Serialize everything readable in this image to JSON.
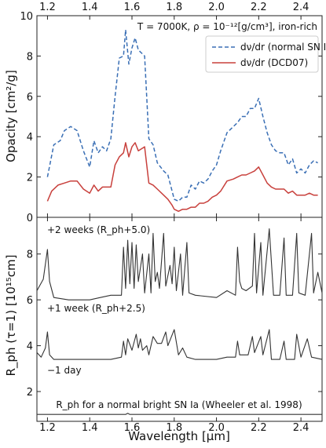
{
  "chart_data": [
    {
      "type": "line",
      "panel": "top",
      "ylabel": "Opacity [cm²/g]",
      "annotation": "T = 7000K, ρ = 10⁻¹²[g/cm³], iron-rich",
      "xlim": [
        1.15,
        2.5
      ],
      "ylim": [
        0,
        10
      ],
      "x_ticks": [
        "1.2",
        "1.4",
        "1.6",
        "1.8",
        "2.0",
        "2.2",
        "2.4"
      ],
      "y_ticks": [
        "0",
        "2",
        "4",
        "6",
        "8",
        "10"
      ],
      "legend_position": "top-right",
      "series": [
        {
          "name": "dν/dr (normal SN Ia)",
          "color": "#3a6fb5",
          "dash": "dashed",
          "points": [
            [
              1.2,
              2.0
            ],
            [
              1.23,
              3.6
            ],
            [
              1.26,
              3.8
            ],
            [
              1.28,
              4.3
            ],
            [
              1.31,
              4.5
            ],
            [
              1.34,
              4.3
            ],
            [
              1.37,
              3.3
            ],
            [
              1.4,
              2.5
            ],
            [
              1.42,
              3.8
            ],
            [
              1.44,
              3.2
            ],
            [
              1.46,
              3.5
            ],
            [
              1.48,
              3.3
            ],
            [
              1.5,
              3.9
            ],
            [
              1.52,
              6.0
            ],
            [
              1.54,
              7.9
            ],
            [
              1.56,
              8.0
            ],
            [
              1.57,
              9.3
            ],
            [
              1.585,
              7.6
            ],
            [
              1.6,
              8.4
            ],
            [
              1.615,
              8.9
            ],
            [
              1.63,
              8.3
            ],
            [
              1.66,
              8.0
            ],
            [
              1.68,
              3.9
            ],
            [
              1.7,
              3.6
            ],
            [
              1.72,
              2.7
            ],
            [
              1.75,
              2.3
            ],
            [
              1.77,
              2.1
            ],
            [
              1.79,
              1.3
            ],
            [
              1.8,
              0.9
            ],
            [
              1.82,
              0.8
            ],
            [
              1.84,
              1.0
            ],
            [
              1.86,
              1.0
            ],
            [
              1.88,
              1.6
            ],
            [
              1.9,
              1.4
            ],
            [
              1.92,
              1.8
            ],
            [
              1.94,
              1.7
            ],
            [
              1.96,
              1.9
            ],
            [
              1.98,
              2.3
            ],
            [
              2.0,
              2.6
            ],
            [
              2.02,
              3.3
            ],
            [
              2.05,
              4.2
            ],
            [
              2.08,
              4.5
            ],
            [
              2.1,
              4.7
            ],
            [
              2.12,
              5.0
            ],
            [
              2.14,
              5.0
            ],
            [
              2.16,
              5.4
            ],
            [
              2.18,
              5.4
            ],
            [
              2.2,
              5.9
            ],
            [
              2.22,
              5.0
            ],
            [
              2.24,
              4.2
            ],
            [
              2.26,
              3.6
            ],
            [
              2.28,
              3.3
            ],
            [
              2.3,
              3.2
            ],
            [
              2.32,
              3.2
            ],
            [
              2.34,
              2.6
            ],
            [
              2.36,
              2.9
            ],
            [
              2.38,
              2.2
            ],
            [
              2.4,
              2.4
            ],
            [
              2.42,
              2.2
            ],
            [
              2.44,
              2.6
            ],
            [
              2.46,
              2.8
            ],
            [
              2.48,
              2.7
            ]
          ]
        },
        {
          "name": "dν/dr (DCD07)",
          "color": "#c8403c",
          "dash": "solid",
          "points": [
            [
              1.2,
              0.8
            ],
            [
              1.22,
              1.3
            ],
            [
              1.25,
              1.6
            ],
            [
              1.28,
              1.7
            ],
            [
              1.31,
              1.8
            ],
            [
              1.34,
              1.8
            ],
            [
              1.37,
              1.4
            ],
            [
              1.4,
              1.2
            ],
            [
              1.42,
              1.6
            ],
            [
              1.44,
              1.3
            ],
            [
              1.46,
              1.5
            ],
            [
              1.48,
              1.5
            ],
            [
              1.5,
              1.5
            ],
            [
              1.52,
              2.6
            ],
            [
              1.54,
              3.0
            ],
            [
              1.56,
              3.2
            ],
            [
              1.57,
              3.7
            ],
            [
              1.585,
              3.0
            ],
            [
              1.6,
              3.5
            ],
            [
              1.615,
              3.7
            ],
            [
              1.63,
              3.3
            ],
            [
              1.66,
              3.5
            ],
            [
              1.68,
              1.7
            ],
            [
              1.7,
              1.6
            ],
            [
              1.72,
              1.4
            ],
            [
              1.75,
              1.1
            ],
            [
              1.77,
              0.9
            ],
            [
              1.79,
              0.6
            ],
            [
              1.8,
              0.4
            ],
            [
              1.82,
              0.3
            ],
            [
              1.84,
              0.4
            ],
            [
              1.86,
              0.4
            ],
            [
              1.88,
              0.5
            ],
            [
              1.9,
              0.5
            ],
            [
              1.92,
              0.7
            ],
            [
              1.94,
              0.7
            ],
            [
              1.96,
              0.8
            ],
            [
              1.98,
              1.0
            ],
            [
              2.0,
              1.1
            ],
            [
              2.02,
              1.3
            ],
            [
              2.05,
              1.8
            ],
            [
              2.08,
              1.9
            ],
            [
              2.1,
              2.0
            ],
            [
              2.12,
              2.1
            ],
            [
              2.14,
              2.1
            ],
            [
              2.16,
              2.2
            ],
            [
              2.18,
              2.3
            ],
            [
              2.2,
              2.5
            ],
            [
              2.22,
              2.1
            ],
            [
              2.24,
              1.7
            ],
            [
              2.26,
              1.5
            ],
            [
              2.28,
              1.4
            ],
            [
              2.3,
              1.4
            ],
            [
              2.32,
              1.4
            ],
            [
              2.34,
              1.2
            ],
            [
              2.36,
              1.3
            ],
            [
              2.38,
              1.1
            ],
            [
              2.4,
              1.1
            ],
            [
              2.42,
              1.1
            ],
            [
              2.44,
              1.2
            ],
            [
              2.46,
              1.1
            ],
            [
              2.48,
              1.1
            ]
          ]
        }
      ]
    },
    {
      "type": "line",
      "panel": "bottom",
      "ylabel": "R_ph (τ=1) [10¹⁵cm]",
      "xlabel": "Wavelength [μm]",
      "xlim": [
        1.15,
        2.5
      ],
      "ylim": [
        0.7,
        9.6
      ],
      "x_ticks": [
        "1.2",
        "1.4",
        "1.6",
        "1.8",
        "2.0",
        "2.2",
        "2.4"
      ],
      "y_ticks": [
        "2",
        "4",
        "6",
        "8"
      ],
      "annotations": [
        "+2 weeks (R_ph+5.0)",
        "+1 week (R_ph+2.5)",
        "−1 day",
        "R_ph for a normal bright SN Ia (Wheeler et al. 1998)"
      ],
      "series": [
        {
          "name": "+2 weeks",
          "color": "#333333",
          "points": [
            [
              1.15,
              6.4
            ],
            [
              1.18,
              6.9
            ],
            [
              1.2,
              8.2
            ],
            [
              1.21,
              6.8
            ],
            [
              1.23,
              6.1
            ],
            [
              1.3,
              6.0
            ],
            [
              1.4,
              6.0
            ],
            [
              1.45,
              6.1
            ],
            [
              1.5,
              6.2
            ],
            [
              1.55,
              6.2
            ],
            [
              1.56,
              8.3
            ],
            [
              1.57,
              6.5
            ],
            [
              1.58,
              8.6
            ],
            [
              1.59,
              6.7
            ],
            [
              1.6,
              8.5
            ],
            [
              1.61,
              6.5
            ],
            [
              1.62,
              8.4
            ],
            [
              1.63,
              6.8
            ],
            [
              1.65,
              8.0
            ],
            [
              1.66,
              6.3
            ],
            [
              1.68,
              8.0
            ],
            [
              1.69,
              6.3
            ],
            [
              1.7,
              8.9
            ],
            [
              1.71,
              6.8
            ],
            [
              1.72,
              7.2
            ],
            [
              1.73,
              6.5
            ],
            [
              1.75,
              8.9
            ],
            [
              1.76,
              6.6
            ],
            [
              1.78,
              7.5
            ],
            [
              1.79,
              6.7
            ],
            [
              1.8,
              8.3
            ],
            [
              1.81,
              6.4
            ],
            [
              1.83,
              8.0
            ],
            [
              1.84,
              6.2
            ],
            [
              1.86,
              8.5
            ],
            [
              1.87,
              6.3
            ],
            [
              1.9,
              6.2
            ],
            [
              2.0,
              6.1
            ],
            [
              2.05,
              6.4
            ],
            [
              2.09,
              6.2
            ],
            [
              2.1,
              8.3
            ],
            [
              2.11,
              6.8
            ],
            [
              2.12,
              6.5
            ],
            [
              2.14,
              6.4
            ],
            [
              2.17,
              6.6
            ],
            [
              2.18,
              8.9
            ],
            [
              2.19,
              6.3
            ],
            [
              2.21,
              8.5
            ],
            [
              2.22,
              6.2
            ],
            [
              2.25,
              9.1
            ],
            [
              2.27,
              6.2
            ],
            [
              2.3,
              6.2
            ],
            [
              2.32,
              8.7
            ],
            [
              2.33,
              6.2
            ],
            [
              2.36,
              6.2
            ],
            [
              2.38,
              8.9
            ],
            [
              2.39,
              6.3
            ],
            [
              2.42,
              6.2
            ],
            [
              2.45,
              8.9
            ],
            [
              2.46,
              6.3
            ],
            [
              2.48,
              7.2
            ],
            [
              2.5,
              6.3
            ]
          ]
        },
        {
          "name": "+1 week",
          "color": "#333333",
          "points": [
            [
              1.15,
              3.7
            ],
            [
              1.17,
              3.5
            ],
            [
              1.19,
              3.9
            ],
            [
              1.2,
              4.6
            ],
            [
              1.21,
              3.6
            ],
            [
              1.23,
              3.4
            ],
            [
              1.3,
              3.4
            ],
            [
              1.4,
              3.4
            ],
            [
              1.5,
              3.4
            ],
            [
              1.55,
              3.5
            ],
            [
              1.56,
              4.2
            ],
            [
              1.57,
              3.6
            ],
            [
              1.58,
              4.3
            ],
            [
              1.6,
              3.8
            ],
            [
              1.62,
              4.5
            ],
            [
              1.63,
              3.9
            ],
            [
              1.64,
              4.3
            ],
            [
              1.65,
              3.8
            ],
            [
              1.67,
              4.0
            ],
            [
              1.68,
              3.6
            ],
            [
              1.7,
              4.4
            ],
            [
              1.72,
              4.1
            ],
            [
              1.74,
              4.1
            ],
            [
              1.76,
              4.6
            ],
            [
              1.77,
              4.0
            ],
            [
              1.8,
              4.7
            ],
            [
              1.82,
              3.6
            ],
            [
              1.84,
              3.9
            ],
            [
              1.86,
              3.5
            ],
            [
              1.9,
              3.4
            ],
            [
              2.0,
              3.4
            ],
            [
              2.05,
              3.5
            ],
            [
              2.09,
              3.5
            ],
            [
              2.1,
              4.2
            ],
            [
              2.11,
              3.6
            ],
            [
              2.13,
              3.6
            ],
            [
              2.15,
              3.6
            ],
            [
              2.17,
              4.4
            ],
            [
              2.18,
              3.7
            ],
            [
              2.21,
              4.4
            ],
            [
              2.22,
              3.6
            ],
            [
              2.25,
              4.7
            ],
            [
              2.26,
              3.4
            ],
            [
              2.3,
              3.4
            ],
            [
              2.32,
              4.2
            ],
            [
              2.33,
              3.4
            ],
            [
              2.37,
              3.4
            ],
            [
              2.38,
              4.5
            ],
            [
              2.4,
              3.5
            ],
            [
              2.43,
              4.3
            ],
            [
              2.45,
              3.5
            ],
            [
              2.5,
              3.4
            ]
          ]
        },
        {
          "name": "−1 day",
          "color": "#333333",
          "points": [
            [
              1.15,
              1.0
            ],
            [
              1.5,
              1.0
            ],
            [
              1.57,
              1.0
            ],
            [
              1.58,
              1.05
            ],
            [
              1.59,
              1.0
            ],
            [
              2.5,
              1.0
            ]
          ]
        }
      ]
    }
  ]
}
